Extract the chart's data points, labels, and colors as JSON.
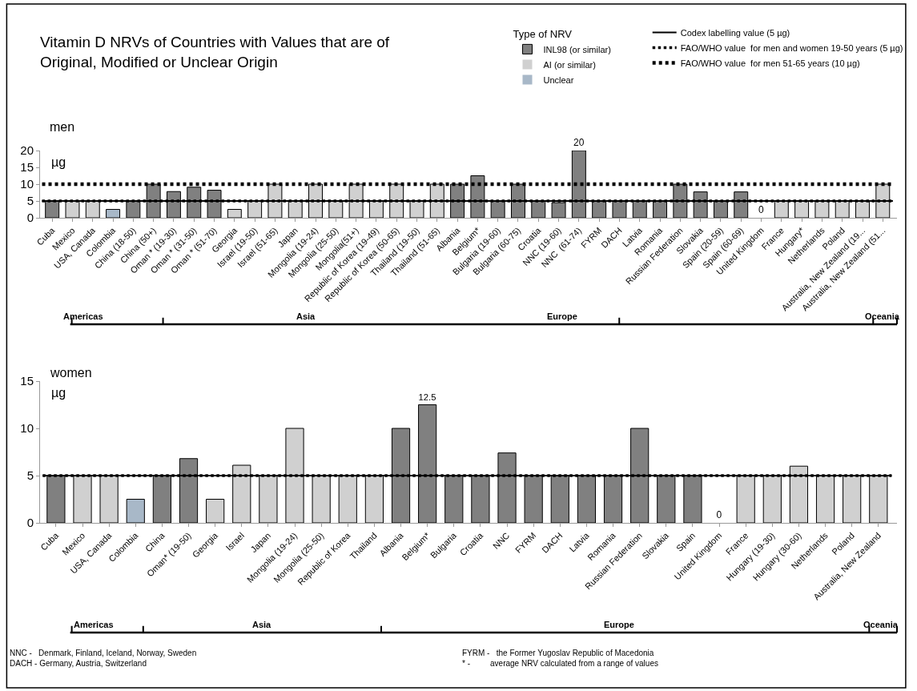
{
  "chart_data": [
    {
      "type": "bar",
      "title": "Vitamin D NRVs of Countries with Values that are of Original, Modified or Unclear Origin",
      "subtitle": "men",
      "ylabel": "µg",
      "legend_title": "Type of NRV",
      "legend": "top right",
      "categories": [
        "Cuba",
        "Mexico",
        "USA, Canada",
        "Colombia",
        "China (18-50)",
        "China (50+)",
        "Oman * (19-30)",
        "Oman * (31-50)",
        "Oman * (51-70)",
        "Georgia",
        "Israel (19-50)",
        "Israel (51-65)",
        "Japan",
        "Mongolia (19-24)",
        "Mongolia (25-50)",
        "Mongolia(51+)",
        "Republic of Korea (19-49)",
        "Republic of Korea (50-65)",
        "Thailand (19-50)",
        "Thailand (51-65)",
        "Albania",
        "Belgium*",
        "Bulgaria (19-60)",
        "Bulgaria (60-75)",
        "Croatia",
        "NNC (19-60)",
        "NNC  (61-74)",
        "FYRM",
        "DACH",
        "Latvia",
        "Romania",
        "Russian Federation",
        "Slovakia",
        "Spain (20-59)",
        "Spain (60-69)",
        "United Kingdom",
        "France",
        "Hungary*",
        "Netherlands",
        "Poland",
        "Australia, New Zealand (19...",
        "Australia, New Zealand (51..."
      ],
      "series": [
        {
          "name": "INL98 (or similar)",
          "color": "#808080",
          "values": [
            5,
            null,
            null,
            null,
            5,
            10,
            7.8,
            9.1,
            8.2,
            null,
            null,
            null,
            null,
            null,
            null,
            null,
            null,
            null,
            null,
            null,
            10,
            12.5,
            5,
            10,
            5,
            4.5,
            20,
            5,
            5,
            5,
            5,
            10,
            7.7,
            5,
            7.7,
            0,
            null,
            null,
            null,
            null,
            null,
            null
          ],
          "value_labels": [
            null,
            null,
            null,
            null,
            null,
            null,
            null,
            null,
            null,
            null,
            null,
            null,
            null,
            null,
            null,
            null,
            null,
            null,
            null,
            null,
            null,
            null,
            null,
            null,
            null,
            null,
            "20",
            null,
            null,
            null,
            null,
            null,
            null,
            null,
            null,
            "0",
            null,
            null,
            null,
            null,
            null,
            null
          ]
        },
        {
          "name": "AI (or similar)",
          "color": "#d0d0d0",
          "values": [
            null,
            5,
            5,
            null,
            null,
            null,
            null,
            null,
            null,
            2.5,
            5,
            10,
            5,
            10,
            5,
            10,
            5,
            10,
            5,
            10,
            null,
            null,
            null,
            null,
            null,
            null,
            null,
            null,
            null,
            null,
            null,
            null,
            null,
            null,
            null,
            null,
            5,
            5,
            5,
            5,
            5,
            10
          ]
        },
        {
          "name": "Unclear",
          "color": "#a8b8c8",
          "values": [
            null,
            null,
            null,
            2.5,
            null,
            null,
            null,
            null,
            null,
            null,
            null,
            null,
            null,
            null,
            null,
            null,
            null,
            null,
            null,
            null,
            null,
            null,
            null,
            null,
            null,
            null,
            null,
            null,
            null,
            null,
            null,
            null,
            null,
            null,
            null,
            null,
            null,
            null,
            null,
            null,
            null,
            null
          ]
        }
      ],
      "ylim": [
        0,
        20
      ],
      "yticks": [
        0,
        5,
        10,
        15,
        20
      ],
      "ref_lines": [
        {
          "axis": "y",
          "value": 5,
          "label": "Codex labelling value (5 µg)",
          "line_style": "solid",
          "color": "#000000"
        },
        {
          "axis": "y",
          "value": 5,
          "label": "FAO/WHO value  for men and women 19-50 years (5 µg)",
          "line_style": "dotted",
          "color": "#000000"
        },
        {
          "axis": "y",
          "value": 10,
          "label": "FAO/WHO value  for men 51-65 years (10 µg)",
          "line_style": "dashed",
          "color": "#000000"
        }
      ],
      "annotations": [
        "Americas",
        "Asia",
        "Europe",
        "Oceania"
      ]
    },
    {
      "type": "bar",
      "subtitle": "women",
      "ylabel": "µg",
      "categories": [
        "Cuba",
        "Mexico",
        "USA, Canada",
        "Colombia",
        "China",
        "Oman* (19-50)",
        "Georgia",
        "Israel",
        "Japan",
        "Mongolia (19-24)",
        "Mongolia (25-50)",
        "Republic of Korea",
        "Thailand",
        "Albania",
        "Belgium*",
        "Bulgaria",
        "Croatia",
        "NNC",
        "FYRM",
        "DACH",
        "Latvia",
        "Romania",
        "Russian Federation",
        "Slovakia",
        "Spain",
        "United Kingdom",
        "France",
        "Hungary (19-30)",
        "Hungary (30-60)",
        "Netherlands",
        "Poland",
        "Australia, New Zealand"
      ],
      "series": [
        {
          "color": "#808080",
          "values": [
            5,
            null,
            null,
            null,
            5,
            6.8,
            null,
            null,
            null,
            null,
            null,
            null,
            null,
            10,
            12.5,
            5,
            5,
            7.4,
            5,
            5,
            5,
            5,
            10,
            5,
            5,
            0,
            null,
            null,
            null,
            null,
            null,
            null
          ],
          "value_labels": [
            null,
            null,
            null,
            null,
            null,
            null,
            null,
            null,
            null,
            null,
            null,
            null,
            null,
            null,
            "12.5",
            null,
            null,
            null,
            null,
            null,
            null,
            null,
            null,
            null,
            null,
            "0",
            null,
            null,
            null,
            null,
            null,
            null
          ]
        },
        {
          "color": "#d0d0d0",
          "values": [
            null,
            5,
            5,
            null,
            null,
            null,
            2.5,
            6.1,
            5,
            10,
            5,
            5,
            5,
            null,
            null,
            null,
            null,
            null,
            null,
            null,
            null,
            null,
            null,
            null,
            null,
            null,
            5,
            5,
            6,
            5,
            5,
            5
          ]
        },
        {
          "color": "#a8b8c8",
          "values": [
            null,
            null,
            null,
            2.5,
            null,
            null,
            null,
            null,
            null,
            null,
            null,
            null,
            null,
            null,
            null,
            null,
            null,
            null,
            null,
            null,
            null,
            null,
            null,
            null,
            null,
            null,
            null,
            null,
            null,
            null,
            null,
            null
          ]
        }
      ],
      "ylim": [
        0,
        15
      ],
      "yticks": [
        0,
        5,
        10,
        15
      ],
      "ref_lines": [
        {
          "axis": "y",
          "value": 5,
          "line_style": "solid",
          "color": "#000000"
        },
        {
          "axis": "y",
          "value": 5,
          "line_style": "dotted",
          "color": "#000000"
        }
      ],
      "annotations": [
        "Americas",
        "Asia",
        "Europe",
        "Oceania",
        "NNC -   Denmark, Finland, Iceland, Norway, Sweden",
        "DACH - Germany, Austria, Switzerland",
        "FYRM -   the Former Yugoslav Republic of Macedonia",
        "* -         average NRV calculated from a range of values"
      ]
    }
  ]
}
